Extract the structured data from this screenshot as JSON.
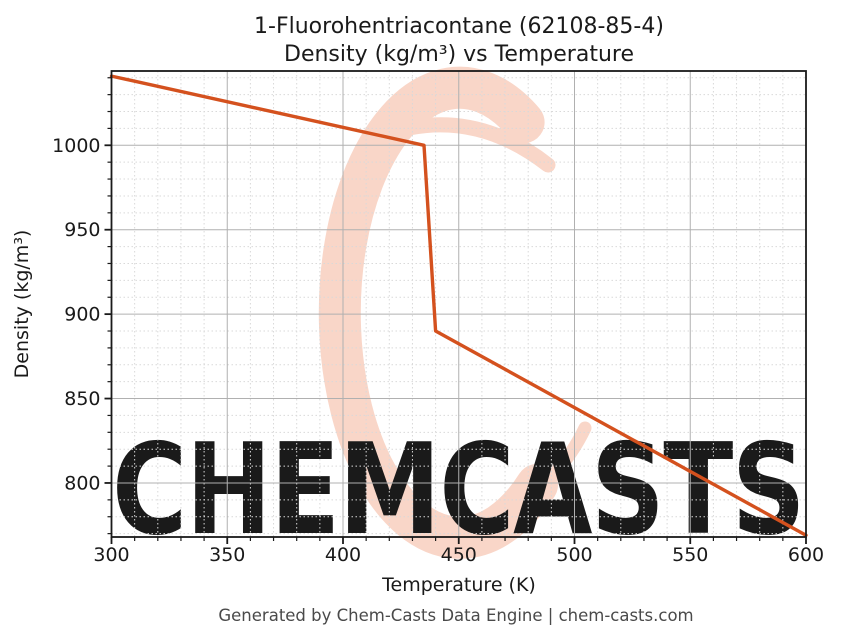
{
  "title": {
    "line1": "1-Fluorohentriacontane (62108-85-4)",
    "line2": "Density (kg/m³) vs Temperature"
  },
  "footer": {
    "text": "Generated by Chem-Casts Data Engine | chem-casts.com"
  },
  "watermark": {
    "text": "CHEMCASTS",
    "logo": "brush-c-swirl",
    "color": "#f8d3c4"
  },
  "chart_data": {
    "type": "line",
    "title": "1-Fluorohentriacontane (62108-85-4) Density (kg/m³) vs Temperature",
    "xlabel": "Temperature (K)",
    "ylabel": "Density (kg/m³)",
    "xlim": [
      300,
      600
    ],
    "ylim": [
      768,
      1044
    ],
    "xticks": [
      300,
      350,
      400,
      450,
      500,
      550,
      600
    ],
    "yticks": [
      800,
      850,
      900,
      950,
      1000
    ],
    "minor_step_x": 10,
    "minor_step_y": 10,
    "grid": {
      "major": true,
      "minor": true,
      "major_color": "#b0b0b0",
      "minor_color": "#d9d9d9"
    },
    "legend": "none",
    "series": [
      {
        "name": "Density",
        "color": "#d4511e",
        "points": [
          [
            300,
            1041
          ],
          [
            435,
            1000
          ],
          [
            440,
            890
          ],
          [
            600,
            769
          ]
        ]
      }
    ]
  }
}
